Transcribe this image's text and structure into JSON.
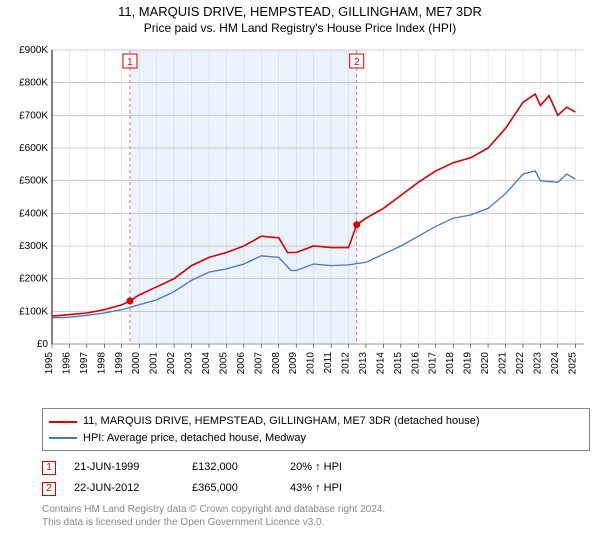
{
  "title": "11, MARQUIS DRIVE, HEMPSTEAD, GILLINGHAM, ME7 3DR",
  "subtitle": "Price paid vs. HM Land Registry's House Price Index (HPI)",
  "chart": {
    "type": "line",
    "background_color": "#ffffff",
    "shaded_band": {
      "x_from": 1999.47,
      "x_to": 2012.47,
      "fill": "#eaf2fb"
    },
    "xlim": [
      1995,
      2025.5
    ],
    "ylim": [
      0,
      900000
    ],
    "ytick_step": 100000,
    "ytick_prefix": "£",
    "ytick_suffix": "K",
    "x_ticks": [
      1995,
      1996,
      1997,
      1998,
      1999,
      2000,
      2001,
      2002,
      2003,
      2004,
      2005,
      2006,
      2007,
      2008,
      2009,
      2010,
      2011,
      2012,
      2013,
      2014,
      2015,
      2016,
      2017,
      2018,
      2019,
      2020,
      2021,
      2022,
      2023,
      2024,
      2025
    ],
    "grid_color": "#999999",
    "minor_grid_color": "#cccccc",
    "axis_color": "#000000",
    "series": [
      {
        "id": "property",
        "color": "#d40000",
        "width": 1.6,
        "points": [
          [
            1995,
            85000
          ],
          [
            1996,
            90000
          ],
          [
            1997,
            95000
          ],
          [
            1998,
            105000
          ],
          [
            1999,
            120000
          ],
          [
            1999.47,
            132000
          ],
          [
            2000,
            150000
          ],
          [
            2001,
            175000
          ],
          [
            2002,
            200000
          ],
          [
            2003,
            240000
          ],
          [
            2004,
            265000
          ],
          [
            2005,
            280000
          ],
          [
            2006,
            300000
          ],
          [
            2007,
            330000
          ],
          [
            2008,
            325000
          ],
          [
            2008.5,
            280000
          ],
          [
            2009,
            280000
          ],
          [
            2010,
            300000
          ],
          [
            2011,
            295000
          ],
          [
            2012,
            295000
          ],
          [
            2012.47,
            365000
          ],
          [
            2013,
            385000
          ],
          [
            2014,
            415000
          ],
          [
            2015,
            455000
          ],
          [
            2016,
            495000
          ],
          [
            2017,
            530000
          ],
          [
            2018,
            555000
          ],
          [
            2019,
            570000
          ],
          [
            2020,
            600000
          ],
          [
            2021,
            660000
          ],
          [
            2022,
            740000
          ],
          [
            2022.7,
            765000
          ],
          [
            2023,
            730000
          ],
          [
            2023.5,
            760000
          ],
          [
            2024,
            700000
          ],
          [
            2024.5,
            725000
          ],
          [
            2025,
            710000
          ]
        ]
      },
      {
        "id": "hpi",
        "color": "#4a74c9",
        "width": 1.3,
        "points": [
          [
            1995,
            80000
          ],
          [
            1996,
            82000
          ],
          [
            1997,
            88000
          ],
          [
            1998,
            95000
          ],
          [
            1999,
            105000
          ],
          [
            2000,
            120000
          ],
          [
            2001,
            135000
          ],
          [
            2002,
            160000
          ],
          [
            2003,
            195000
          ],
          [
            2004,
            220000
          ],
          [
            2005,
            230000
          ],
          [
            2006,
            245000
          ],
          [
            2007,
            270000
          ],
          [
            2008,
            265000
          ],
          [
            2008.7,
            225000
          ],
          [
            2009,
            225000
          ],
          [
            2010,
            245000
          ],
          [
            2011,
            240000
          ],
          [
            2012,
            242000
          ],
          [
            2013,
            250000
          ],
          [
            2014,
            275000
          ],
          [
            2015,
            300000
          ],
          [
            2016,
            330000
          ],
          [
            2017,
            360000
          ],
          [
            2018,
            385000
          ],
          [
            2019,
            395000
          ],
          [
            2020,
            415000
          ],
          [
            2021,
            460000
          ],
          [
            2022,
            520000
          ],
          [
            2022.7,
            530000
          ],
          [
            2023,
            500000
          ],
          [
            2024,
            495000
          ],
          [
            2024.5,
            520000
          ],
          [
            2025,
            505000
          ]
        ]
      }
    ],
    "markers": [
      {
        "n": "1",
        "x": 1999.47,
        "y": 132000,
        "color": "#d40000"
      },
      {
        "n": "2",
        "x": 2012.47,
        "y": 365000,
        "color": "#d40000"
      }
    ],
    "marker_vlines": {
      "color": "#d47a7a",
      "dash": "3,3"
    }
  },
  "legend": {
    "items": [
      {
        "color": "#d40000",
        "label": "11, MARQUIS DRIVE, HEMPSTEAD, GILLINGHAM, ME7 3DR (detached house)"
      },
      {
        "color": "#4a74c9",
        "label": "HPI: Average price, detached house, Medway"
      }
    ]
  },
  "events": [
    {
      "n": "1",
      "date": "21-JUN-1999",
      "price": "£132,000",
      "change": "20% ↑ HPI"
    },
    {
      "n": "2",
      "date": "22-JUN-2012",
      "price": "£365,000",
      "change": "43% ↑ HPI"
    }
  ],
  "footnote_line1": "Contains HM Land Registry data © Crown copyright and database right 2024.",
  "footnote_line2": "This data is licensed under the Open Government Licence v3.0."
}
